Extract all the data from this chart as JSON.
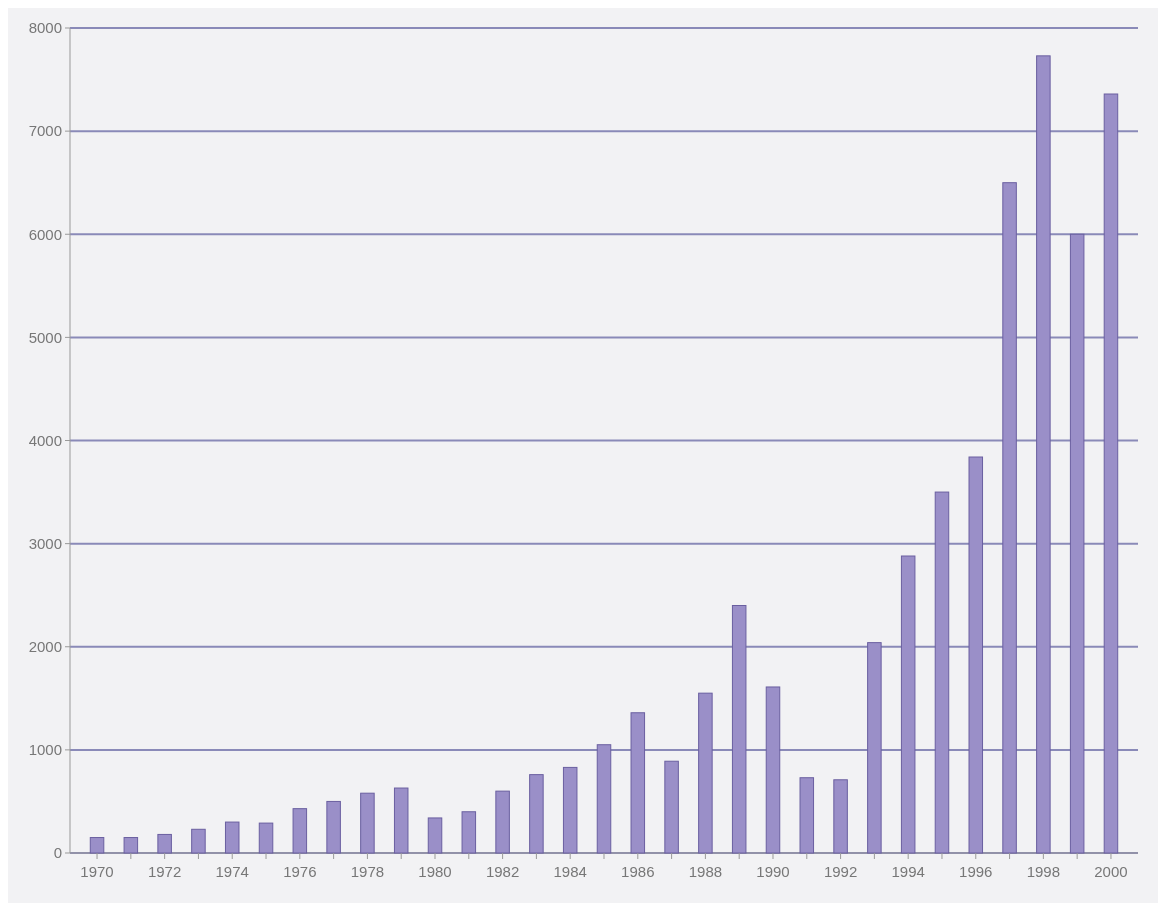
{
  "chart_data": {
    "type": "bar",
    "categories": [
      "1970",
      null,
      "1972",
      null,
      "1974",
      null,
      "1976",
      null,
      "1978",
      null,
      "1980",
      null,
      "1982",
      null,
      "1984",
      null,
      "1986",
      null,
      "1988",
      null,
      "1990",
      null,
      "1992",
      null,
      "1994",
      null,
      "1996",
      null,
      "1998",
      null,
      "2000"
    ],
    "values": [
      150,
      150,
      180,
      230,
      300,
      290,
      430,
      500,
      580,
      630,
      340,
      400,
      600,
      760,
      830,
      1050,
      1360,
      890,
      1550,
      2400,
      1610,
      730,
      710,
      2040,
      2880,
      3500,
      3840,
      6500,
      7730,
      6000,
      7360
    ],
    "color": "#9a8fc8",
    "ylim": [
      0,
      8000
    ],
    "yticks": [
      0,
      1000,
      2000,
      3000,
      4000,
      5000,
      6000,
      7000,
      8000
    ],
    "grid": "y"
  }
}
